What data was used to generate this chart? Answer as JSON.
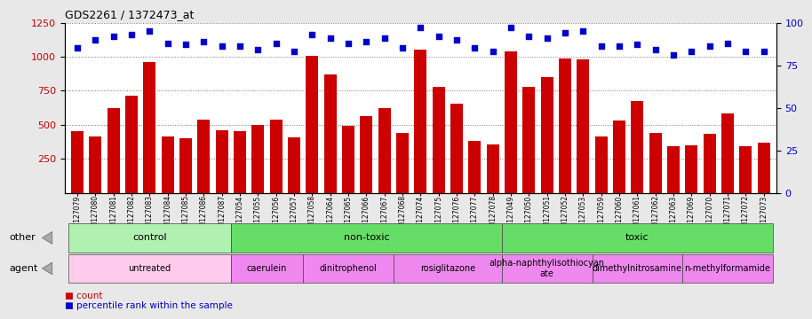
{
  "title": "GDS2261 / 1372473_at",
  "samples": [
    "GSM127079",
    "GSM127080",
    "GSM127081",
    "GSM127082",
    "GSM127083",
    "GSM127084",
    "GSM127085",
    "GSM127086",
    "GSM127087",
    "GSM127054",
    "GSM127055",
    "GSM127056",
    "GSM127057",
    "GSM127058",
    "GSM127064",
    "GSM127065",
    "GSM127066",
    "GSM127067",
    "GSM127068",
    "GSM127074",
    "GSM127075",
    "GSM127076",
    "GSM127077",
    "GSM127078",
    "GSM127049",
    "GSM127050",
    "GSM127051",
    "GSM127052",
    "GSM127053",
    "GSM127059",
    "GSM127060",
    "GSM127061",
    "GSM127062",
    "GSM127063",
    "GSM127069",
    "GSM127070",
    "GSM127071",
    "GSM127072",
    "GSM127073"
  ],
  "counts": [
    450,
    415,
    620,
    710,
    960,
    415,
    400,
    540,
    460,
    455,
    500,
    540,
    410,
    1005,
    870,
    490,
    560,
    620,
    440,
    1050,
    775,
    655,
    380,
    355,
    1040,
    775,
    850,
    985,
    980,
    415,
    530,
    675,
    440,
    340,
    350,
    430,
    585,
    345,
    370
  ],
  "percentile_ranks": [
    85,
    90,
    92,
    93,
    95,
    88,
    87,
    89,
    86,
    86,
    84,
    88,
    83,
    93,
    91,
    88,
    89,
    91,
    85,
    97,
    92,
    90,
    85,
    83,
    97,
    92,
    91,
    94,
    95,
    86,
    86,
    87,
    84,
    81,
    83,
    86,
    88,
    83,
    83
  ],
  "groups_other": [
    {
      "label": "control",
      "start": 0,
      "end": 9,
      "color": "#b0f0b0"
    },
    {
      "label": "non-toxic",
      "start": 9,
      "end": 24,
      "color": "#66dd66"
    },
    {
      "label": "toxic",
      "start": 24,
      "end": 39,
      "color": "#66dd66"
    }
  ],
  "groups_agent": [
    {
      "label": "untreated",
      "start": 0,
      "end": 9,
      "color": "#ffccee"
    },
    {
      "label": "caerulein",
      "start": 9,
      "end": 13,
      "color": "#ee88ee"
    },
    {
      "label": "dinitrophenol",
      "start": 13,
      "end": 18,
      "color": "#ee88ee"
    },
    {
      "label": "rosiglitazone",
      "start": 18,
      "end": 24,
      "color": "#ee88ee"
    },
    {
      "label": "alpha-naphthylisothiocyan\nate",
      "start": 24,
      "end": 29,
      "color": "#ee88ee"
    },
    {
      "label": "dimethylnitrosamine",
      "start": 29,
      "end": 34,
      "color": "#ee88ee"
    },
    {
      "label": "n-methylformamide",
      "start": 34,
      "end": 39,
      "color": "#ee88ee"
    }
  ],
  "bar_color": "#cc0000",
  "dot_color": "#0000cc",
  "fig_bg": "#e8e8e8",
  "plot_bg": "#ffffff",
  "bar_width": 0.7
}
